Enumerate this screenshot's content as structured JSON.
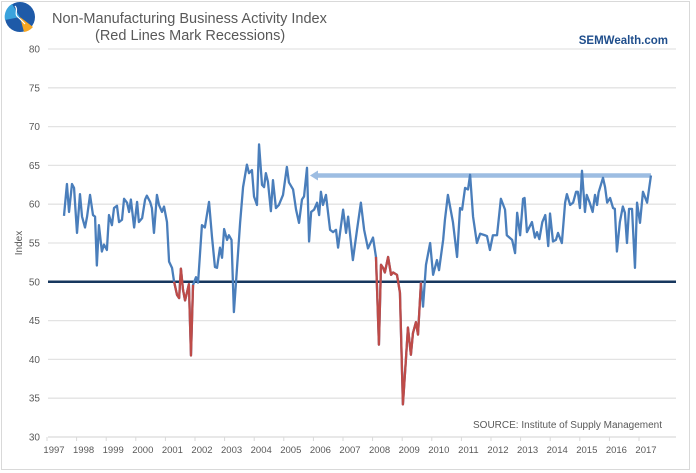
{
  "chart_data": {
    "type": "line",
    "title": "Non-Manufacturing Business Activity Index",
    "subtitle": "(Red Lines Mark Recessions)",
    "brand": "SEMWealth.com",
    "source": "SOURCE:  Institute of Supply Management",
    "ylabel": "Index",
    "xlabel": "",
    "ylim": [
      30,
      80
    ],
    "yticks": [
      30,
      35,
      40,
      45,
      50,
      55,
      60,
      65,
      70,
      75,
      80
    ],
    "xlim": [
      1997,
      2018.2
    ],
    "xticks": [
      "1997",
      "1998",
      "1999",
      "2000",
      "2001",
      "2002",
      "2003",
      "2004",
      "2005",
      "2006",
      "2007",
      "2008",
      "2009",
      "2010",
      "2011",
      "2012",
      "2013",
      "2014",
      "2015",
      "2016",
      "2017"
    ],
    "grid": true,
    "reference_line": {
      "value": 50,
      "color": "#17375e"
    },
    "arrow": {
      "value": 63.7,
      "from": 2017.37,
      "to": 2005.85,
      "color": "#9dbde2"
    },
    "recessions": [
      [
        2001.26,
        2001.9
      ],
      [
        2008.08,
        2009.6
      ]
    ],
    "colors": {
      "series": "#4a7ebb",
      "recession": "#be4b48",
      "grid": "#e3e3e3",
      "brand": "#1f4e8c",
      "text": "#595959"
    },
    "series": [
      {
        "name": "Non-Manufacturing Business Activity Index",
        "points": [
          [
            1997.54,
            58.5
          ],
          [
            1997.64,
            62.6
          ],
          [
            1997.71,
            59
          ],
          [
            1997.81,
            62.6
          ],
          [
            1997.88,
            62.1
          ],
          [
            1997.98,
            56.3
          ],
          [
            1998.08,
            61.3
          ],
          [
            1998.15,
            58.4
          ],
          [
            1998.25,
            57
          ],
          [
            1998.32,
            58.4
          ],
          [
            1998.42,
            61.2
          ],
          [
            1998.52,
            58.6
          ],
          [
            1998.59,
            58.4
          ],
          [
            1998.65,
            52.1
          ],
          [
            1998.72,
            57.3
          ],
          [
            1998.82,
            53.9
          ],
          [
            1998.89,
            54.8
          ],
          [
            1998.99,
            54.1
          ],
          [
            1999.06,
            58.6
          ],
          [
            1999.16,
            57.3
          ],
          [
            1999.23,
            59.5
          ],
          [
            1999.33,
            59.8
          ],
          [
            1999.4,
            57.7
          ],
          [
            1999.5,
            58
          ],
          [
            1999.57,
            60.7
          ],
          [
            1999.67,
            60.2
          ],
          [
            1999.74,
            59
          ],
          [
            1999.8,
            60.6
          ],
          [
            1999.91,
            57
          ],
          [
            2000.01,
            60.3
          ],
          [
            2000.07,
            57.7
          ],
          [
            2000.18,
            58.2
          ],
          [
            2000.28,
            60.6
          ],
          [
            2000.34,
            61.1
          ],
          [
            2000.45,
            60.3
          ],
          [
            2000.51,
            59.5
          ],
          [
            2000.58,
            56.3
          ],
          [
            2000.68,
            61.2
          ],
          [
            2000.75,
            59.9
          ],
          [
            2000.85,
            59
          ],
          [
            2000.92,
            59.7
          ],
          [
            2001.02,
            57.7
          ],
          [
            2001.09,
            52.6
          ],
          [
            2001.19,
            51.8
          ],
          [
            2001.26,
            50
          ],
          [
            2001.36,
            48.3
          ],
          [
            2001.43,
            47.9
          ],
          [
            2001.49,
            51.7
          ],
          [
            2001.56,
            49
          ],
          [
            2001.63,
            47.6
          ],
          [
            2001.7,
            48.7
          ],
          [
            2001.76,
            49.7
          ],
          [
            2001.83,
            40.5
          ],
          [
            2001.9,
            49.6
          ],
          [
            2002.0,
            50.6
          ],
          [
            2002.07,
            49.9
          ],
          [
            2002.2,
            57.3
          ],
          [
            2002.3,
            57
          ],
          [
            2002.44,
            60.3
          ],
          [
            2002.54,
            55.8
          ],
          [
            2002.64,
            51.9
          ],
          [
            2002.71,
            51.8
          ],
          [
            2002.81,
            54.4
          ],
          [
            2002.88,
            53.1
          ],
          [
            2002.95,
            56.8
          ],
          [
            2003.05,
            55.4
          ],
          [
            2003.11,
            56
          ],
          [
            2003.2,
            55.4
          ],
          [
            2003.28,
            46.1
          ],
          [
            2003.38,
            51.5
          ],
          [
            2003.49,
            57.6
          ],
          [
            2003.59,
            62.2
          ],
          [
            2003.72,
            65.1
          ],
          [
            2003.79,
            64
          ],
          [
            2003.89,
            64.4
          ],
          [
            2003.96,
            61
          ],
          [
            2004.06,
            59.9
          ],
          [
            2004.13,
            67.7
          ],
          [
            2004.23,
            62.5
          ],
          [
            2004.3,
            62.2
          ],
          [
            2004.36,
            64
          ],
          [
            2004.43,
            62.9
          ],
          [
            2004.53,
            59.1
          ],
          [
            2004.6,
            63.1
          ],
          [
            2004.7,
            59.5
          ],
          [
            2004.8,
            59.9
          ],
          [
            2004.94,
            61.2
          ],
          [
            2005.07,
            64.8
          ],
          [
            2005.14,
            62.8
          ],
          [
            2005.28,
            61.9
          ],
          [
            2005.38,
            59.3
          ],
          [
            2005.48,
            57.6
          ],
          [
            2005.58,
            60.6
          ],
          [
            2005.65,
            61
          ],
          [
            2005.75,
            64.7
          ],
          [
            2005.82,
            55.2
          ],
          [
            2005.89,
            59
          ],
          [
            2005.99,
            59.3
          ],
          [
            2006.09,
            60.2
          ],
          [
            2006.16,
            58.6
          ],
          [
            2006.22,
            61.6
          ],
          [
            2006.29,
            59.9
          ],
          [
            2006.39,
            61.2
          ],
          [
            2006.53,
            56.7
          ],
          [
            2006.63,
            56.4
          ],
          [
            2006.73,
            56.7
          ],
          [
            2006.8,
            54.4
          ],
          [
            2006.97,
            59.3
          ],
          [
            2007.07,
            56.3
          ],
          [
            2007.14,
            58.4
          ],
          [
            2007.3,
            52.8
          ],
          [
            2007.44,
            56.7
          ],
          [
            2007.57,
            60.2
          ],
          [
            2007.68,
            56.7
          ],
          [
            2007.81,
            54.3
          ],
          [
            2007.98,
            55.7
          ],
          [
            2008.08,
            53.2
          ],
          [
            2008.18,
            41.9
          ],
          [
            2008.25,
            52.2
          ],
          [
            2008.32,
            51.8
          ],
          [
            2008.38,
            51.2
          ],
          [
            2008.49,
            53.2
          ],
          [
            2008.59,
            50.9
          ],
          [
            2008.66,
            51.2
          ],
          [
            2008.79,
            50.9
          ],
          [
            2008.89,
            48.6
          ],
          [
            2008.99,
            34.2
          ],
          [
            2009.09,
            39.9
          ],
          [
            2009.16,
            44.1
          ],
          [
            2009.26,
            40.6
          ],
          [
            2009.33,
            43.4
          ],
          [
            2009.43,
            44.8
          ],
          [
            2009.5,
            43.2
          ],
          [
            2009.6,
            49.9
          ],
          [
            2009.67,
            46.8
          ],
          [
            2009.77,
            52.2
          ],
          [
            2009.91,
            55
          ],
          [
            2010.01,
            50.9
          ],
          [
            2010.14,
            52.8
          ],
          [
            2010.21,
            51.5
          ],
          [
            2010.35,
            55.4
          ],
          [
            2010.41,
            58
          ],
          [
            2010.51,
            61.2
          ],
          [
            2010.68,
            57.7
          ],
          [
            2010.82,
            53.2
          ],
          [
            2010.92,
            59.5
          ],
          [
            2010.99,
            59.3
          ],
          [
            2011.09,
            62.1
          ],
          [
            2011.19,
            61.9
          ],
          [
            2011.26,
            63.8
          ],
          [
            2011.36,
            58.4
          ],
          [
            2011.49,
            55
          ],
          [
            2011.6,
            56.2
          ],
          [
            2011.76,
            56
          ],
          [
            2011.83,
            55.9
          ],
          [
            2011.93,
            54.1
          ],
          [
            2012.03,
            56
          ],
          [
            2012.17,
            56
          ],
          [
            2012.3,
            60.7
          ],
          [
            2012.44,
            59.3
          ],
          [
            2012.5,
            56
          ],
          [
            2012.68,
            55.4
          ],
          [
            2012.78,
            53.7
          ],
          [
            2012.85,
            58.9
          ],
          [
            2012.95,
            56
          ],
          [
            2013.05,
            60.7
          ],
          [
            2013.1,
            60.8
          ],
          [
            2013.18,
            56.4
          ],
          [
            2013.35,
            57.7
          ],
          [
            2013.45,
            55.7
          ],
          [
            2013.52,
            56.4
          ],
          [
            2013.6,
            55.5
          ],
          [
            2013.7,
            57.7
          ],
          [
            2013.8,
            58.6
          ],
          [
            2013.9,
            54.6
          ],
          [
            2013.96,
            58.8
          ],
          [
            2014.06,
            55.2
          ],
          [
            2014.16,
            55.4
          ],
          [
            2014.23,
            56.3
          ],
          [
            2014.36,
            55
          ],
          [
            2014.47,
            60.2
          ],
          [
            2014.53,
            61.3
          ],
          [
            2014.64,
            59.9
          ],
          [
            2014.74,
            60.2
          ],
          [
            2014.84,
            61.6
          ],
          [
            2014.9,
            61.6
          ],
          [
            2014.97,
            59.5
          ],
          [
            2015.04,
            64.3
          ],
          [
            2015.14,
            59
          ],
          [
            2015.2,
            61.2
          ],
          [
            2015.3,
            60.2
          ],
          [
            2015.4,
            59
          ],
          [
            2015.48,
            61.2
          ],
          [
            2015.55,
            59.9
          ],
          [
            2015.6,
            61.5
          ],
          [
            2015.75,
            63.4
          ],
          [
            2015.82,
            62.2
          ],
          [
            2015.89,
            60.2
          ],
          [
            2015.99,
            60.8
          ],
          [
            2016.09,
            59.5
          ],
          [
            2016.15,
            59.4
          ],
          [
            2016.22,
            53.9
          ],
          [
            2016.32,
            57.7
          ],
          [
            2016.42,
            59.7
          ],
          [
            2016.49,
            58.9
          ],
          [
            2016.56,
            55
          ],
          [
            2016.63,
            59.4
          ],
          [
            2016.73,
            59.4
          ],
          [
            2016.83,
            51.8
          ],
          [
            2016.9,
            60.2
          ],
          [
            2017.0,
            57.6
          ],
          [
            2017.1,
            61.6
          ],
          [
            2017.24,
            60.2
          ],
          [
            2017.37,
            63.7
          ]
        ]
      }
    ]
  }
}
